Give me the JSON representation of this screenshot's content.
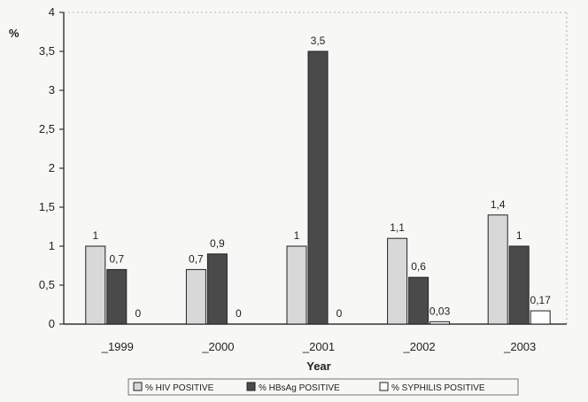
{
  "chart_data": {
    "type": "bar",
    "categories": [
      "_1999",
      "_2000",
      "_2001",
      "_2002",
      "_2003"
    ],
    "series": [
      {
        "name": "% HIV POSITIVE",
        "values": [
          1,
          0.7,
          1,
          1.1,
          1.4
        ],
        "labels": [
          "1",
          "0,7",
          "1",
          "1,1",
          "1,4"
        ],
        "color": "#d8d8d8"
      },
      {
        "name": "% HBsAg POSITIVE",
        "values": [
          0.7,
          0.9,
          3.5,
          0.6,
          1
        ],
        "labels": [
          "0,7",
          "0,9",
          "3,5",
          "0,6",
          "1"
        ],
        "color": "#4a4a4a"
      },
      {
        "name": "% SYPHILIS POSITIVE",
        "values": [
          0,
          0,
          0,
          0.03,
          0.17
        ],
        "labels": [
          "0",
          "0",
          "0",
          "0,03",
          "0,17"
        ],
        "color": "#ffffff"
      }
    ],
    "xlabel": "Year",
    "ylabel": "%",
    "ylim": [
      0,
      4
    ],
    "yticks": [
      0,
      0.5,
      1,
      1.5,
      2,
      2.5,
      3,
      3.5,
      4
    ],
    "ytick_labels": [
      "0",
      "0,5",
      "1",
      "1,5",
      "2",
      "2,5",
      "3",
      "3,5",
      "4"
    ],
    "grid": false,
    "legend_position": "bottom"
  }
}
